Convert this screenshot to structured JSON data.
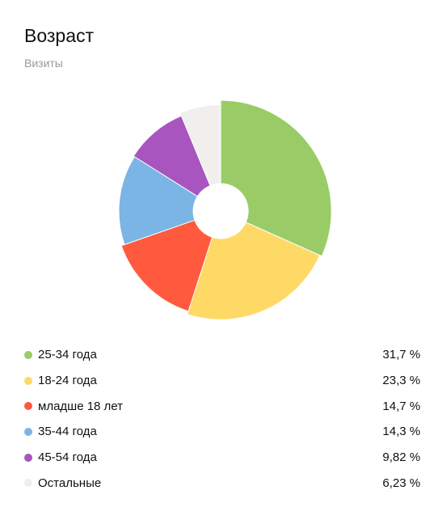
{
  "header": {
    "title": "Возраст",
    "subtitle": "Визиты"
  },
  "chart_data": {
    "type": "pie",
    "title": "Возраст",
    "subtitle": "Визиты",
    "donut": true,
    "start_angle_deg": 0,
    "direction": "clockwise",
    "legend_placement": "bottom",
    "slices": [
      {
        "label": "25-34 года",
        "value": 31.7,
        "value_text": "31,7 %",
        "color": "#99CC66"
      },
      {
        "label": "18-24 года",
        "value": 23.3,
        "value_text": "23,3 %",
        "color": "#FFD966"
      },
      {
        "label": "младше 18 лет",
        "value": 14.7,
        "value_text": "14,7 %",
        "color": "#FF5A3D"
      },
      {
        "label": "35-44 года",
        "value": 14.3,
        "value_text": "14,3 %",
        "color": "#7AB5E5"
      },
      {
        "label": "45-54 года",
        "value": 9.82,
        "value_text": "9,82 %",
        "color": "#A855BF"
      },
      {
        "label": "Остальные",
        "value": 6.23,
        "value_text": "6,23 %",
        "color": "#F0EFED"
      }
    ]
  }
}
